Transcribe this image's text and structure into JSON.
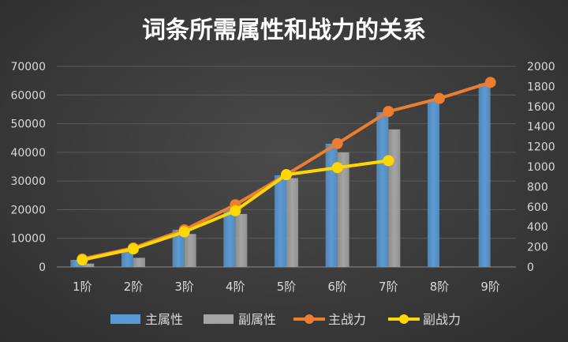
{
  "chart_data": {
    "type": "bar+line",
    "title": "词条所需属性和战力的关系",
    "categories": [
      "1阶",
      "2阶",
      "3阶",
      "4阶",
      "5阶",
      "6阶",
      "7阶",
      "8阶",
      "9阶"
    ],
    "bar_series": [
      {
        "name": "主属性",
        "color": "#5b9bd5",
        "values": [
          2500,
          5500,
          13000,
          20000,
          32000,
          43000,
          54000,
          58000,
          64000
        ]
      },
      {
        "name": "副属性",
        "color": "#a5a5a5",
        "values": [
          1200,
          3200,
          11500,
          18500,
          31000,
          40000,
          48000,
          null,
          null
        ]
      }
    ],
    "line_series": [
      {
        "name": "主战力",
        "color": "#ed7d31",
        "values": [
          80,
          190,
          370,
          620,
          920,
          1230,
          1550,
          1680,
          1840
        ]
      },
      {
        "name": "副战力",
        "color": "#ffd700",
        "values": [
          70,
          180,
          350,
          560,
          920,
          990,
          1060,
          null,
          null
        ]
      }
    ],
    "y_left": {
      "min": 0,
      "max": 70000,
      "ticks": [
        "0",
        "10000",
        "20000",
        "30000",
        "40000",
        "50000",
        "60000",
        "70000"
      ]
    },
    "y_right": {
      "min": 0,
      "max": 2000,
      "ticks": [
        "0",
        "200",
        "400",
        "600",
        "800",
        "1000",
        "1200",
        "1400",
        "1600",
        "1800",
        "2000"
      ]
    },
    "legend": [
      "主属性",
      "副属性",
      "主战力",
      "副战力"
    ],
    "legend_position": "bottom",
    "grid": true
  }
}
